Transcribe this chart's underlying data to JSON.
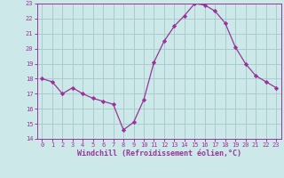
{
  "x": [
    0,
    1,
    2,
    3,
    4,
    5,
    6,
    7,
    8,
    9,
    10,
    11,
    12,
    13,
    14,
    15,
    16,
    17,
    18,
    19,
    20,
    21,
    22,
    23
  ],
  "y": [
    18.0,
    17.8,
    17.0,
    17.4,
    17.0,
    16.7,
    16.5,
    16.3,
    14.6,
    15.1,
    16.6,
    19.1,
    20.5,
    21.5,
    22.2,
    23.0,
    22.9,
    22.5,
    21.7,
    20.1,
    19.0,
    18.2,
    17.8,
    17.4
  ],
  "line_color": "#993399",
  "marker": "D",
  "marker_size": 2.2,
  "bg_color": "#cce8e8",
  "grid_color": "#aacccc",
  "ylim": [
    14,
    23
  ],
  "xlim": [
    -0.5,
    23.5
  ],
  "yticks": [
    14,
    15,
    16,
    17,
    18,
    19,
    20,
    21,
    22,
    23
  ],
  "xticks": [
    0,
    1,
    2,
    3,
    4,
    5,
    6,
    7,
    8,
    9,
    10,
    11,
    12,
    13,
    14,
    15,
    16,
    17,
    18,
    19,
    20,
    21,
    22,
    23
  ],
  "xlabel": "Windchill (Refroidissement éolien,°C)",
  "xlabel_color": "#993399",
  "tick_color": "#993399",
  "axis_color": "#993399",
  "tick_fontsize": 5.0,
  "xlabel_fontsize": 6.0
}
